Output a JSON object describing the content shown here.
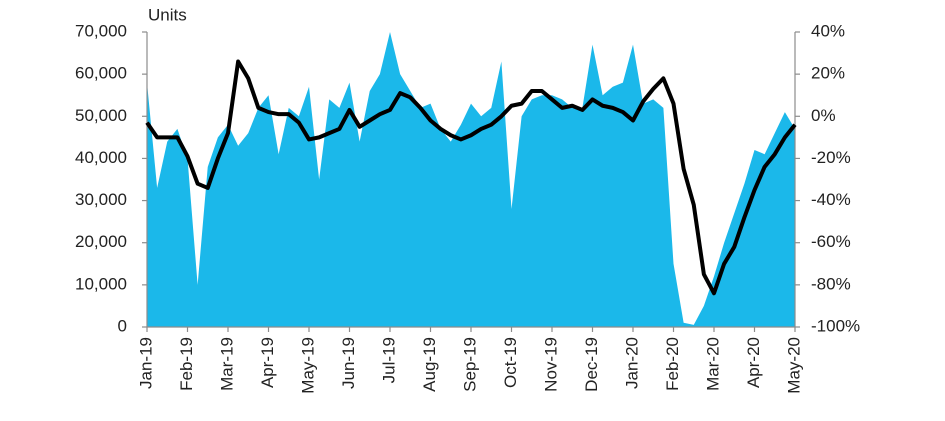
{
  "chart_data": {
    "type": "combo",
    "y_label": "Units",
    "categories": [
      "Jan-19",
      null,
      null,
      null,
      "Feb-19",
      null,
      null,
      null,
      "Mar-19",
      null,
      null,
      null,
      "Apr-19",
      null,
      null,
      null,
      "May-19",
      null,
      null,
      null,
      "Jun-19",
      null,
      null,
      null,
      "Jul-19",
      null,
      null,
      null,
      "Aug-19",
      null,
      null,
      null,
      "Sep-19",
      null,
      null,
      null,
      "Oct-19",
      null,
      null,
      null,
      "Nov-19",
      null,
      null,
      null,
      "Dec-19",
      null,
      null,
      null,
      "Jan-20",
      null,
      null,
      null,
      "Feb-20",
      null,
      null,
      null,
      "Mar-20",
      null,
      null,
      null,
      "Apr-20",
      null,
      null,
      null,
      "May-20"
    ],
    "series": [
      {
        "type": "area",
        "color": "#1bb8ea",
        "values": [
          58000,
          33000,
          44000,
          47000,
          40000,
          10000,
          38000,
          45000,
          48000,
          43000,
          46000,
          52000,
          55000,
          41000,
          52000,
          50000,
          57000,
          35000,
          54000,
          52000,
          58000,
          44000,
          56000,
          60000,
          70000,
          60000,
          56000,
          52000,
          53000,
          47000,
          44000,
          48000,
          53000,
          50000,
          52000,
          63000,
          28000,
          50000,
          54000,
          55000,
          55000,
          54000,
          52000,
          52000,
          67000,
          55000,
          57000,
          58000,
          67000,
          53000,
          54000,
          52000,
          15000,
          1000,
          500,
          5000,
          12000,
          20000,
          27000,
          34000,
          42000,
          41000,
          46000,
          51000,
          47000
        ]
      },
      {
        "type": "line",
        "color": "#000000",
        "axis": "y2",
        "values": [
          -3,
          -10,
          -10,
          -10,
          -19,
          -32,
          -34,
          -20,
          -8,
          26,
          18,
          4,
          2,
          1,
          1,
          -3,
          -11,
          -10,
          -8,
          -6,
          3,
          -5,
          -2,
          1,
          3,
          11,
          9,
          4,
          -2,
          -6,
          -9,
          -11,
          -9,
          -6,
          -4,
          0,
          5,
          6,
          12,
          12,
          8,
          4,
          5,
          3,
          8,
          5,
          4,
          2,
          -2,
          7,
          13,
          18,
          6,
          -25,
          -42,
          -75,
          -84,
          -70,
          -62,
          -48,
          -35,
          -24,
          -18,
          -10,
          -4
        ]
      }
    ],
    "ylim": [
      0,
      70000
    ],
    "yticks": [
      0,
      {
        "value": 10000,
        "label": "10,000"
      },
      {
        "value": 20000,
        "label": "20,000"
      },
      {
        "value": 30000,
        "label": "30,000"
      },
      {
        "value": 40000,
        "label": "40,000"
      },
      {
        "value": 50000,
        "label": "50,000"
      },
      {
        "value": 60000,
        "label": "60,000"
      },
      {
        "value": 70000,
        "label": "70,000"
      }
    ],
    "y2lim": [
      -100,
      40
    ],
    "y2ticks": [
      {
        "value": -100,
        "label": "-100%"
      },
      {
        "value": -80,
        "label": "-80%"
      },
      {
        "value": -60,
        "label": "-60%"
      },
      {
        "value": -40,
        "label": "-40%"
      },
      {
        "value": -20,
        "label": "-20%"
      },
      {
        "value": 0,
        "label": "0%"
      },
      {
        "value": 20,
        "label": "20%"
      },
      {
        "value": 40,
        "label": "40%"
      }
    ]
  }
}
